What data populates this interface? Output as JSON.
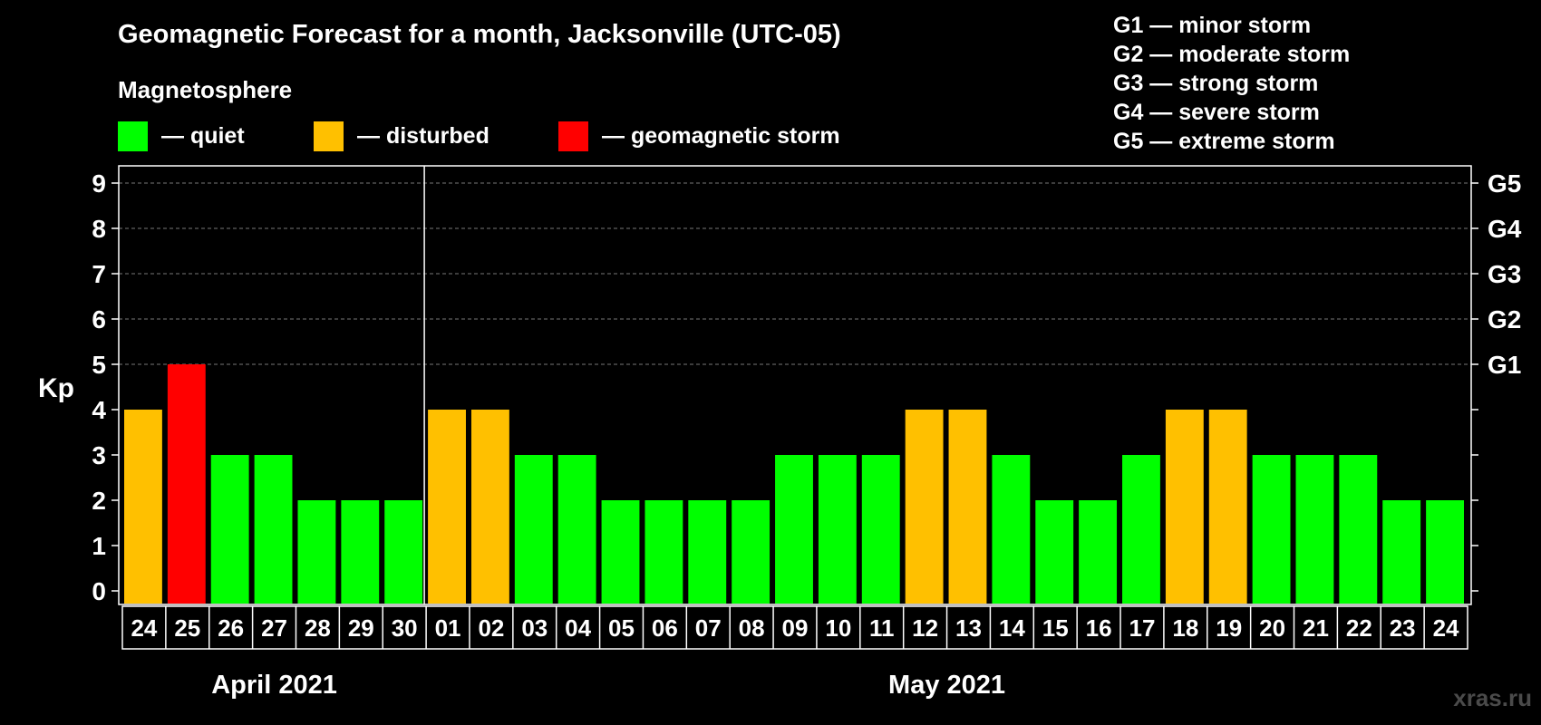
{
  "chart_data": {
    "type": "bar",
    "title": "Geomagnetic Forecast for a month, Jacksonville (UTC-05)",
    "ylabel": "Kp",
    "ylim": [
      0,
      9
    ],
    "yticks": [
      "0",
      "1",
      "2",
      "3",
      "4",
      "5",
      "6",
      "7",
      "8",
      "9"
    ],
    "right_axis_labels": [
      {
        "value": 5,
        "label": "G1"
      },
      {
        "value": 6,
        "label": "G2"
      },
      {
        "value": 7,
        "label": "G3"
      },
      {
        "value": 8,
        "label": "G4"
      },
      {
        "value": 9,
        "label": "G5"
      }
    ],
    "categories": [
      "24",
      "25",
      "26",
      "27",
      "28",
      "29",
      "30",
      "01",
      "02",
      "03",
      "04",
      "05",
      "06",
      "07",
      "08",
      "09",
      "10",
      "11",
      "12",
      "13",
      "14",
      "15",
      "16",
      "17",
      "18",
      "19",
      "20",
      "21",
      "22",
      "23",
      "24"
    ],
    "values": [
      4,
      5,
      3,
      3,
      2,
      2,
      2,
      4,
      4,
      3,
      3,
      2,
      2,
      2,
      2,
      3,
      3,
      3,
      4,
      4,
      3,
      2,
      2,
      3,
      4,
      4,
      3,
      3,
      3,
      2,
      2
    ],
    "colors_by_value": {
      "quiet": "#00ff00",
      "disturbed": "#ffc000",
      "storm": "#ff0000"
    },
    "months": [
      {
        "label": "April 2021",
        "start": 0,
        "end": 6
      },
      {
        "label": "May 2021",
        "start": 7,
        "end": 30
      }
    ],
    "grid": true
  },
  "legend": {
    "title": "Magnetosphere",
    "items": [
      {
        "label": "— quiet",
        "color": "#00ff00"
      },
      {
        "label": "— disturbed",
        "color": "#ffc000"
      },
      {
        "label": "— geomagnetic storm",
        "color": "#ff0000"
      }
    ]
  },
  "g_scale": [
    "G1 — minor storm",
    "G2 — moderate storm",
    "G3 — strong storm",
    "G4 — severe storm",
    "G5 — extreme storm"
  ],
  "watermark": "xras.ru"
}
